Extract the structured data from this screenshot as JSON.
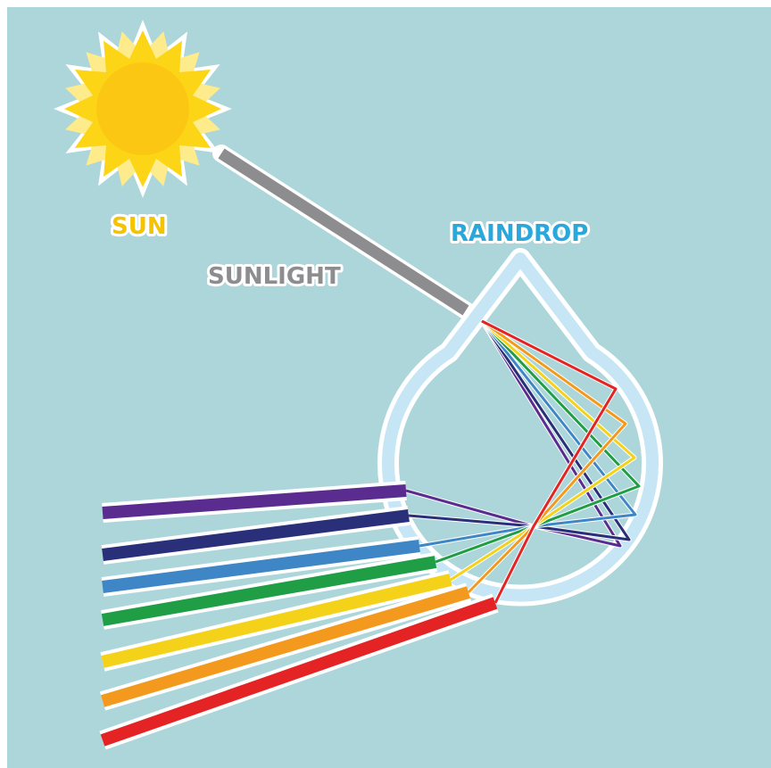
{
  "labels": {
    "sun": "SUN",
    "sunlight": "SUNLIGHT",
    "raindrop": "RAINDROP"
  }
}
